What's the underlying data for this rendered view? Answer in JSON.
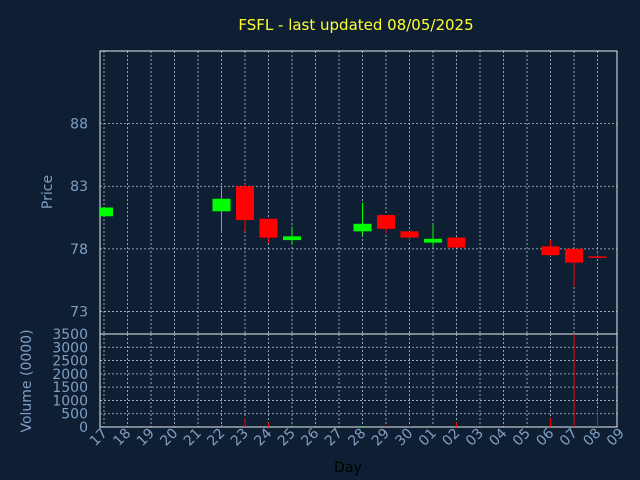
{
  "chart_data": {
    "type": "candlestick",
    "title": "FSFL - last updated 08/05/2025",
    "xlabel": "Day",
    "price_ylabel": "Price",
    "volume_ylabel": "Volume (0000)",
    "x_ticks": [
      "17",
      "18",
      "19",
      "20",
      "21",
      "22",
      "23",
      "24",
      "25",
      "26",
      "27",
      "28",
      "29",
      "30",
      "01",
      "02",
      "03",
      "04",
      "05",
      "06",
      "07",
      "08",
      "09"
    ],
    "price_ticks": [
      73,
      78,
      83,
      88
    ],
    "price_ylim": [
      71.2,
      93.8
    ],
    "volume_ticks": [
      0,
      500,
      1000,
      1500,
      2000,
      2500,
      3000,
      3500
    ],
    "volume_tick_labels": [
      "0",
      "500",
      "1000",
      "1500",
      "2000",
      "2500",
      "3000",
      "3500"
    ],
    "volume_ylim": [
      0,
      3500
    ],
    "colors": {
      "up": "#00ff00",
      "down": "#ff0000",
      "background": "#0f1f33",
      "plot": "#0f1f33",
      "title": "#ffff33",
      "axis_text": "#7f9fc2"
    },
    "candles": [
      {
        "x": 0,
        "open": 80.6,
        "high": 81.3,
        "low": 80.6,
        "close": 81.3,
        "volume": 20
      },
      {
        "x": 5,
        "open": 81.0,
        "high": 83.0,
        "low": 79.4,
        "close": 82.0,
        "volume": 70
      },
      {
        "x": 6,
        "open": 83.0,
        "high": 83.2,
        "low": 79.4,
        "close": 80.3,
        "volume": 340
      },
      {
        "x": 7,
        "open": 80.4,
        "high": 80.4,
        "low": 78.5,
        "close": 78.9,
        "volume": 160
      },
      {
        "x": 8,
        "open": 78.7,
        "high": 79.8,
        "low": 78.4,
        "close": 79.0,
        "volume": 60
      },
      {
        "x": 11,
        "open": 79.4,
        "high": 81.7,
        "low": 79.1,
        "close": 80.0,
        "volume": 40
      },
      {
        "x": 12,
        "open": 80.7,
        "high": 80.7,
        "low": 79.2,
        "close": 79.6,
        "volume": 70
      },
      {
        "x": 13,
        "open": 79.4,
        "high": 79.5,
        "low": 78.6,
        "close": 78.9,
        "volume": 50
      },
      {
        "x": 14,
        "open": 78.5,
        "high": 79.9,
        "low": 78.2,
        "close": 78.8,
        "volume": 20
      },
      {
        "x": 15,
        "open": 78.9,
        "high": 78.9,
        "low": 78.1,
        "close": 78.1,
        "volume": 170
      },
      {
        "x": 19,
        "open": 78.2,
        "high": 78.7,
        "low": 77.4,
        "close": 77.5,
        "volume": 330
      },
      {
        "x": 20,
        "open": 78.0,
        "high": 78.0,
        "low": 75.0,
        "close": 76.9,
        "volume": 3500
      },
      {
        "x": 21,
        "open": 77.4,
        "high": 77.7,
        "low": 77.3,
        "close": 77.3,
        "volume": 680
      }
    ]
  }
}
